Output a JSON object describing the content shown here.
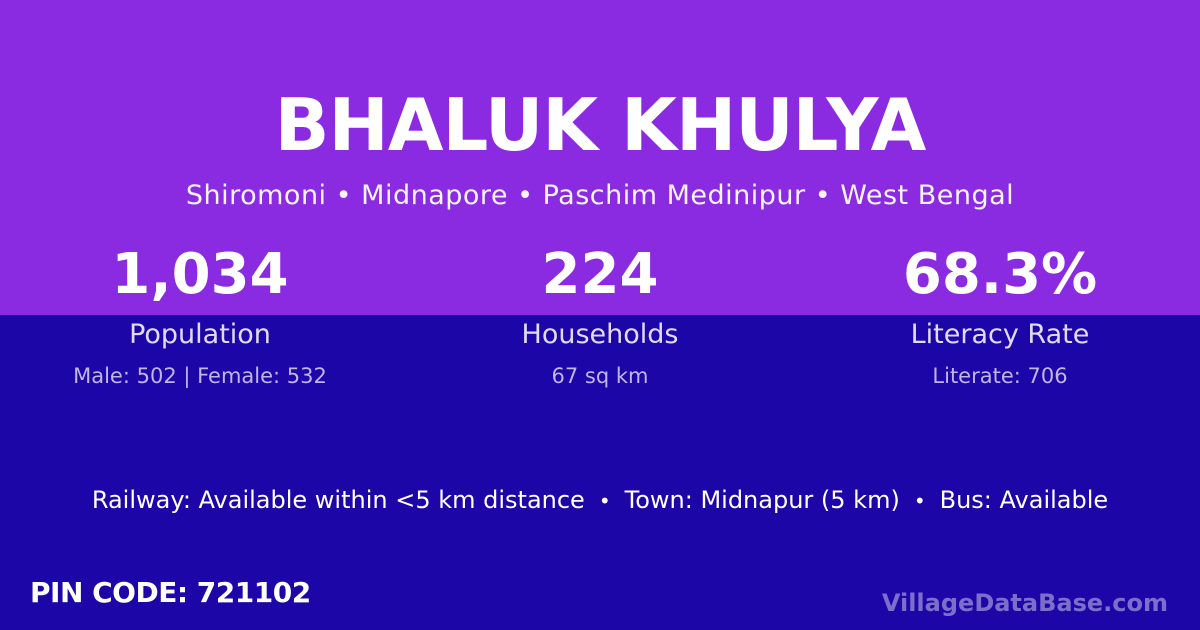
{
  "colors": {
    "top_background": "#8a2be2",
    "bottom_background": "#1c06a8",
    "title_text": "#ffffff",
    "label_text": "#e2dbf5",
    "detail_text": "#c0b4e8",
    "watermark_text": "rgba(255,255,255,0.42)"
  },
  "header": {
    "title": "BHALUK KHULYA",
    "subtitle": "Shiromoni • Midnapore • Paschim Medinipur • West Bengal"
  },
  "stats": [
    {
      "value": "1,034",
      "label": "Population",
      "detail": "Male: 502 | Female: 532"
    },
    {
      "value": "224",
      "label": "Households",
      "detail": "67 sq km"
    },
    {
      "value": "68.3%",
      "label": "Literacy Rate",
      "detail": "Literate: 706"
    }
  ],
  "transport": {
    "separator": "•",
    "segments": [
      "Railway: Available within <5 km distance",
      "Town: Midnapur (5 km)",
      "Bus: Available"
    ]
  },
  "footer": {
    "pin_code": "PIN CODE: 721102",
    "watermark": "VillageDataBase.com"
  }
}
